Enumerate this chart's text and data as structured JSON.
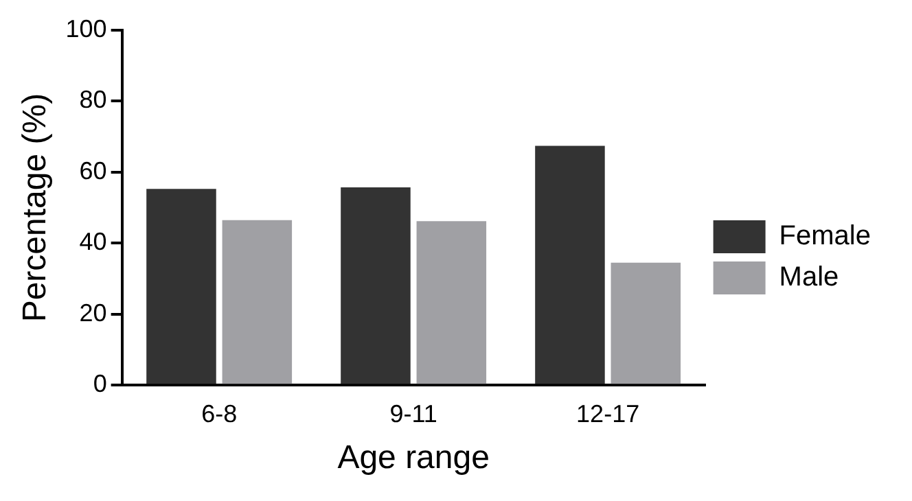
{
  "chart_data": {
    "type": "bar",
    "xlabel": "Age range",
    "ylabel": "Percentage (%)",
    "categories": [
      "6-8",
      "9-11",
      "12-17"
    ],
    "series": [
      {
        "name": "Female",
        "color": "#333333",
        "values": [
          55.3,
          55.7,
          67.4
        ]
      },
      {
        "name": "Male",
        "color": "#a0a0a4",
        "values": [
          46.5,
          46.2,
          34.5
        ]
      }
    ],
    "ylim": [
      0,
      100
    ],
    "yticks": [
      0,
      20,
      40,
      60,
      80,
      100
    ],
    "grid": false,
    "legend": "right"
  }
}
